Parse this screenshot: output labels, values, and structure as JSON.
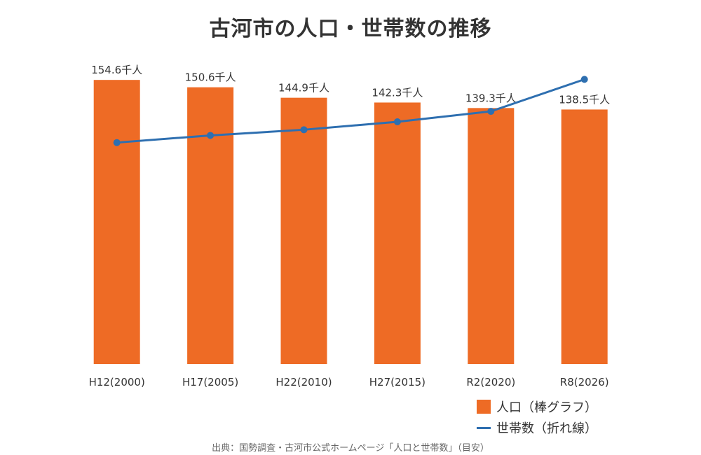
{
  "colors": {
    "bar": "#ee6b25",
    "line": "#2e6fb0",
    "text": "#333333"
  },
  "chart_data": {
    "type": "bar",
    "title": "古河市の人口・世帯数の推移",
    "categories": [
      "H12(2000)",
      "H17(2005)",
      "H22(2010)",
      "H27(2015)",
      "R2(2020)",
      "R8(2026)"
    ],
    "ylim": [
      0,
      160
    ],
    "series": [
      {
        "name": "人口（棒グラフ）",
        "type": "bar",
        "values": [
          154.6,
          150.6,
          144.9,
          142.3,
          139.3,
          138.5
        ],
        "labels": [
          "154.6千人",
          "150.6千人",
          "144.9千人",
          "142.3千人",
          "139.3千人",
          "138.5千人"
        ]
      },
      {
        "name": "世帯数（折れ線）",
        "type": "line",
        "values": [
          120.5,
          124.4,
          127.5,
          131.8,
          137.5,
          154.9
        ]
      }
    ],
    "grid": false,
    "legend_position": "bottom-right"
  },
  "source": "出典：国勢調査・古河市公式ホームページ「人口と世帯数」（目安）"
}
